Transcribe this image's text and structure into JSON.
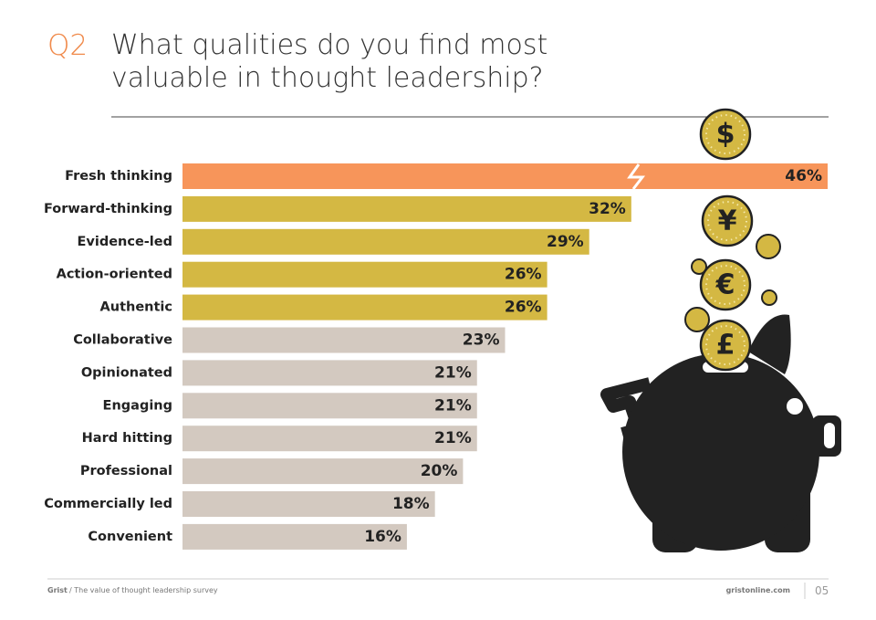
{
  "header": {
    "question": "Q2",
    "title": "What qualities do you find most valuable in thought leadership?"
  },
  "chart_data": {
    "type": "bar",
    "orientation": "horizontal",
    "categories": [
      "Fresh thinking",
      "Forward-thinking",
      "Evidence-led",
      "Action-oriented",
      "Authentic",
      "Collaborative",
      "Opinionated",
      "Engaging",
      "Hard hitting",
      "Professional",
      "Commercially led",
      "Convenient"
    ],
    "values": [
      46,
      32,
      29,
      26,
      26,
      23,
      21,
      21,
      21,
      20,
      18,
      16
    ],
    "value_labels": [
      "46%",
      "32%",
      "29%",
      "26%",
      "26%",
      "23%",
      "21%",
      "21%",
      "21%",
      "20%",
      "18%",
      "16%"
    ],
    "colors": [
      "#f7955a",
      "#d4b843",
      "#d4b843",
      "#d4b843",
      "#d4b843",
      "#d3c9c0",
      "#d3c9c0",
      "#d3c9c0",
      "#d3c9c0",
      "#d3c9c0",
      "#d3c9c0",
      "#d3c9c0"
    ]
  },
  "illustration": {
    "coin_symbols": [
      "$",
      "¥",
      "€",
      "£"
    ]
  },
  "footer": {
    "brand": "Grist",
    "subtitle": "/ The value of thought leadership survey",
    "website": "gristonline.com",
    "page": "05"
  }
}
